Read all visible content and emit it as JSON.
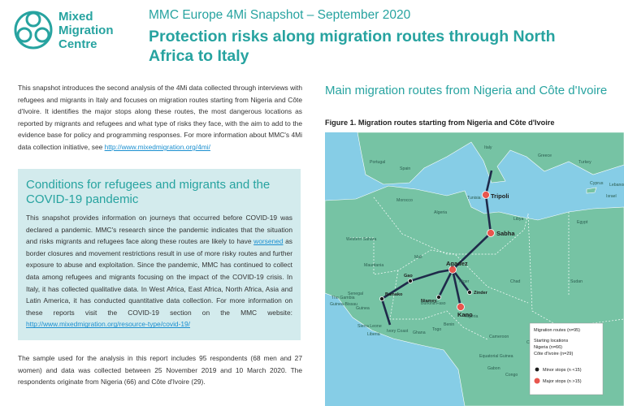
{
  "header": {
    "org_name": [
      "Mixed",
      "Migration",
      "Centre"
    ],
    "subtitle": "MMC Europe 4Mi Snapshot – September 2020",
    "title": "Protection risks along migration routes through North Africa to Italy"
  },
  "intro": {
    "text": "This snapshot introduces the second analysis of the 4Mi data collected through interviews with refugees and migrants in Italy and focuses on migration routes starting from Nigeria and Côte d'Ivoire. It identifies the major stops along these routes, the most dangerous locations as reported by migrants and refugees and what type of risks they face, with the aim to add to the evidence base for policy and programming responses. For more information about MMC's 4Mi data collection initiative, see ",
    "link": "http://www.mixedmigration.org/4mi/"
  },
  "covid_box": {
    "title": "Conditions for refugees and migrants and the COVID-19 pandemic",
    "text_1": "This snapshot provides information on journeys that occurred before COVID-19 was declared a pandemic. MMC's research since the pandemic indicates that the situation and risks migrants and refugees face along these routes are likely to have ",
    "link_1": "worsened",
    "text_2": " as border closures and movement restrictions result in use of more risky routes and further exposure to abuse and exploitation. Since the pandemic, MMC has continued to collect data among refugees and migrants focusing on the impact of the COVID-19 crisis. In Italy, it has collected qualitative data. In West Africa, East Africa, North Africa, Asia and Latin America, it has conducted quantitative data collection. For more information on these reports visit the COVID-19 section on the MMC website: ",
    "link_2": "http://www.mixedmigration.org/resource-type/covid-19/"
  },
  "sample": {
    "text": "The sample used for the analysis in this report includes 95 respondents (68 men and 27 women) and data was collected between 25 November 2019 and 10 March 2020. The respondents originate from Nigeria (66) and Côte d'Ivoire (29)."
  },
  "map_section": {
    "heading": "Main migration routes from Nigeria and Côte d'Ivoire",
    "caption": "Figure 1. Migration routes starting from Nigeria and Côte d'Ivoire",
    "country_labels": [
      "Portugal",
      "Spain",
      "Italy",
      "Greece",
      "Turkey",
      "Cyprus",
      "Lebanon",
      "Israel",
      "Tunisia",
      "Morocco",
      "Algeria",
      "Libya",
      "Egypt",
      "Western Sahara",
      "Mauritania",
      "Mali",
      "Niger",
      "Chad",
      "Sudan",
      "The Gambia",
      "Guinea-Bissau",
      "Senegal",
      "Guinea",
      "Sierra Leone",
      "Liberia",
      "Ivory Coast",
      "Burkina Faso",
      "Ghana",
      "Togo",
      "Benin",
      "Nigeria",
      "Cameroon",
      "Central African Rep.",
      "Equatorial Guinea",
      "Gabon",
      "Congo"
    ],
    "cities": [
      "Tripoli",
      "Sabha",
      "Agadez",
      "Zinder",
      "Kano",
      "Niamey",
      "Gao",
      "Bamako"
    ],
    "legend": {
      "title": "Migration routes (n=95)",
      "starting": "Starting locations",
      "nigeria": "Nigeria (n=66)",
      "cote": "Côte d'Ivoire (n=29)",
      "minor": "Minor stops (n <15)",
      "major": "Major stops (n >15)"
    }
  }
}
